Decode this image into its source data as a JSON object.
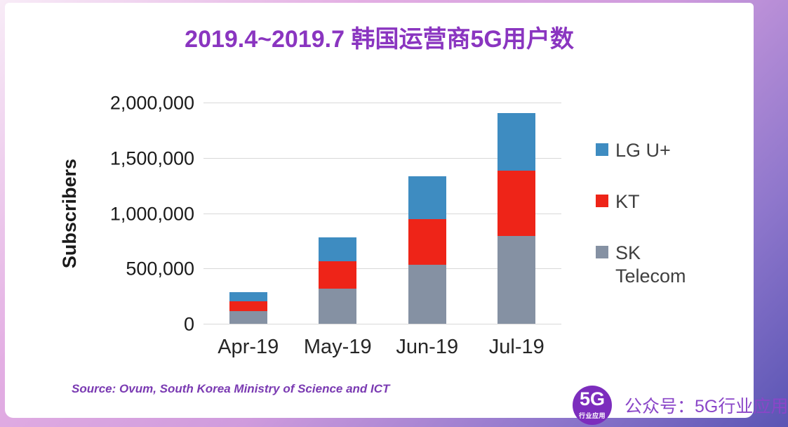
{
  "chart_data": {
    "type": "bar",
    "stacked": true,
    "title": "2019.4~2019.7 韩国运营商5G用户数",
    "ylabel": "Subscribers",
    "xlabel": "",
    "categories": [
      "Apr-19",
      "May-19",
      "Jun-19",
      "Jul-19"
    ],
    "series": [
      {
        "name": "SK Telecom",
        "color": "#8591a3",
        "values": [
          115000,
          320000,
          535000,
          795000
        ]
      },
      {
        "name": "KT",
        "color": "#ee2418",
        "values": [
          90000,
          245000,
          410000,
          590000
        ]
      },
      {
        "name": "LG U+",
        "color": "#3e8cc1",
        "values": [
          80000,
          215000,
          390000,
          520000
        ]
      }
    ],
    "totals": [
      285000,
      780000,
      1335000,
      1905000
    ],
    "ylim": [
      0,
      2000000
    ],
    "yticks": [
      0,
      500000,
      1000000,
      1500000,
      2000000
    ],
    "ytick_labels": [
      "0",
      "500,000",
      "1,000,000",
      "1,500,000",
      "2,000,000"
    ],
    "grid": true,
    "gridline_color": "#d9d9d9",
    "legend_position": "right",
    "legend_order": [
      "LG U+",
      "KT",
      "SK Telecom"
    ]
  },
  "header": {
    "title_color": "#8a35c0"
  },
  "footer": {
    "source": "Source: Ovum, South Korea Ministry of Science and ICT",
    "source_color": "#7a3ab2",
    "logo_text": "5G",
    "logo_subtext": "行业应用",
    "logo_color": "#7c2dbd",
    "account_label": "公众号：5G行业应用",
    "account_color": "#8a46c8"
  }
}
